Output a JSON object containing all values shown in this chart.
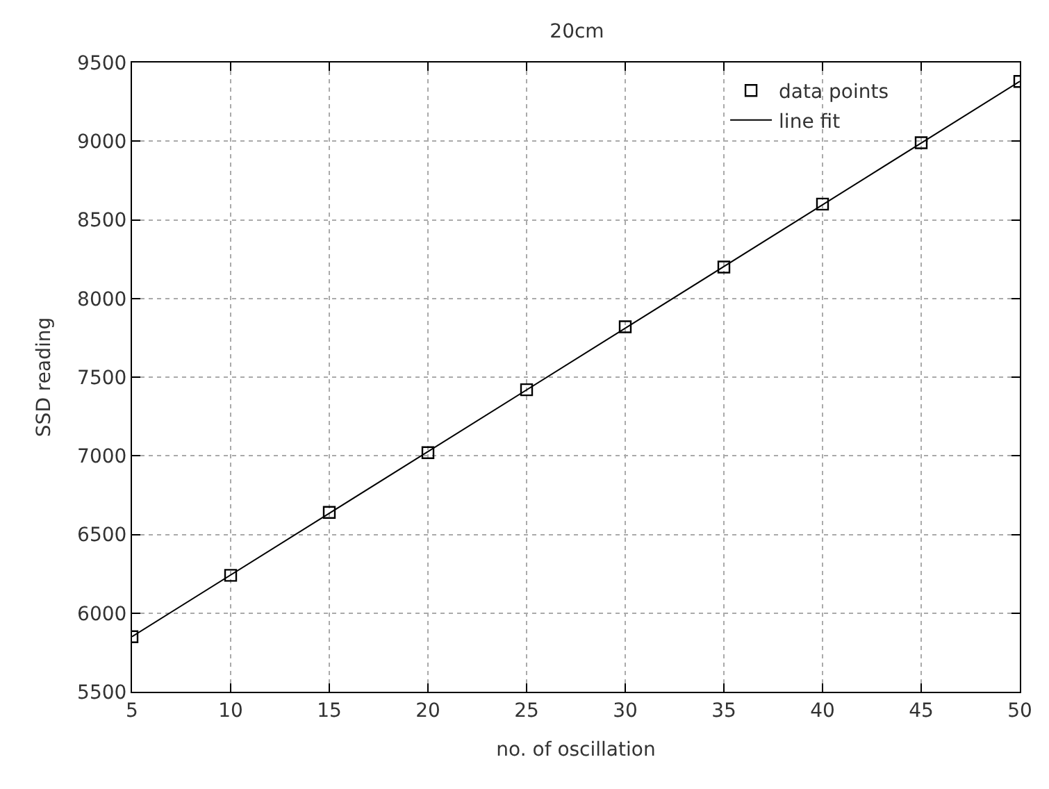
{
  "chart_data": {
    "type": "scatter",
    "title": "20cm",
    "xlabel": "no. of oscillation",
    "ylabel": "SSD reading",
    "x": [
      5,
      10,
      15,
      20,
      25,
      30,
      35,
      40,
      45,
      50
    ],
    "series": [
      {
        "name": "data points",
        "marker": "square",
        "color": "#000000",
        "values": [
          5850,
          6240,
          6640,
          7020,
          7420,
          7820,
          8200,
          8600,
          8990,
          9380
        ]
      },
      {
        "name": "line fit",
        "type": "line",
        "marker": "none",
        "line_style": "solid",
        "color": "#000000",
        "x": [
          5,
          50
        ],
        "values": [
          5850,
          9380
        ]
      }
    ],
    "xlim": [
      5,
      50
    ],
    "xticks": [
      5,
      10,
      15,
      20,
      25,
      30,
      35,
      40,
      45,
      50
    ],
    "ylim": [
      5500,
      9500
    ],
    "yticks": [
      5500,
      6000,
      6500,
      7000,
      7500,
      8000,
      8500,
      9000,
      9500
    ],
    "grid": true,
    "legend": "top right"
  }
}
